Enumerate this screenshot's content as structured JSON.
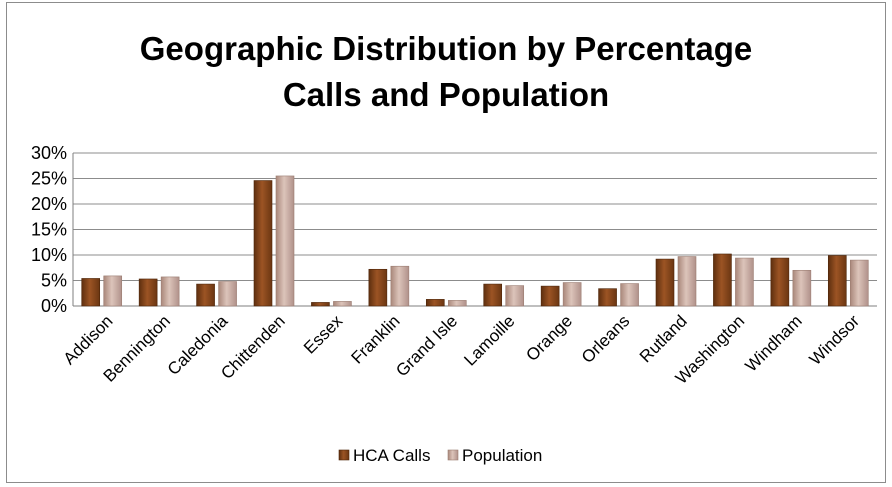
{
  "chart_data": {
    "type": "bar",
    "title_lines": [
      "Geographic Distribution by Percentage",
      "Calls and Population"
    ],
    "xlabel": "",
    "ylabel": "",
    "ylim": [
      0,
      30
    ],
    "y_ticks": [
      "0%",
      "5%",
      "10%",
      "15%",
      "20%",
      "25%",
      "30%"
    ],
    "y_tick_values": [
      0,
      5,
      10,
      15,
      20,
      25,
      30
    ],
    "grid": true,
    "legend_position": "bottom",
    "categories": [
      "Addison",
      "Bennington",
      "Caledonia",
      "Chittenden",
      "Essex",
      "Franklin",
      "Grand Isle",
      "Lamoille",
      "Orange",
      "Orleans",
      "Rutland",
      "Washington",
      "Windham",
      "Windsor"
    ],
    "series": [
      {
        "name": "HCA Calls",
        "color": "#8b4a1c",
        "values": [
          5.4,
          5.3,
          4.3,
          24.6,
          0.7,
          7.2,
          1.3,
          4.3,
          3.9,
          3.4,
          9.2,
          10.2,
          9.4,
          9.9
        ]
      },
      {
        "name": "Population",
        "color": "#c9a99b",
        "values": [
          5.9,
          5.7,
          4.8,
          25.5,
          0.9,
          7.8,
          1.1,
          4.0,
          4.6,
          4.4,
          9.7,
          9.4,
          7.0,
          9.0
        ]
      }
    ]
  }
}
